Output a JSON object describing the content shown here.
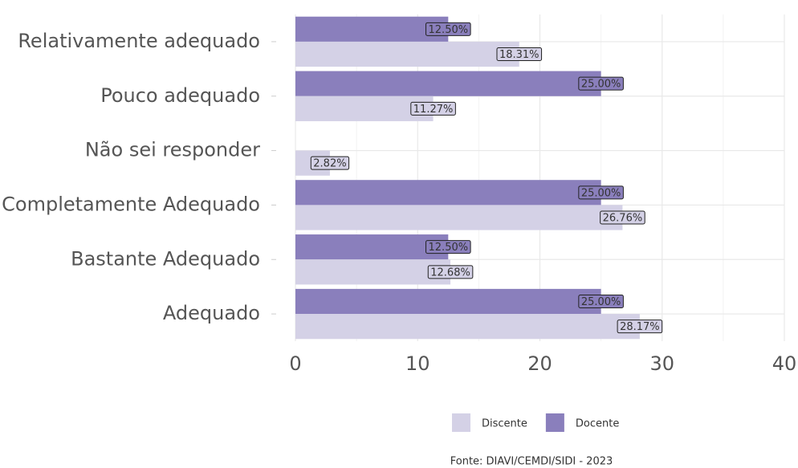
{
  "chart_data": {
    "type": "bar",
    "orientation": "horizontal",
    "categories": [
      "Relativamente adequado",
      "Pouco adequado",
      "Não sei responder",
      "Completamente Adequado",
      "Bastante Adequado",
      "Adequado"
    ],
    "series": [
      {
        "name": "Discente",
        "color": "#d4d1e6",
        "values": [
          18.31,
          11.27,
          2.82,
          26.76,
          12.68,
          28.17
        ],
        "value_labels": [
          "18.31%",
          "11.27%",
          "2.82%",
          "26.76%",
          "12.68%",
          "28.17%"
        ]
      },
      {
        "name": "Docente",
        "color": "#8a7fbc",
        "values": [
          12.5,
          25,
          null,
          25,
          12.5,
          25
        ],
        "value_labels": [
          "12.50%",
          "25.00%",
          null,
          "25.00%",
          "12.50%",
          "25.00%"
        ]
      }
    ],
    "xlim": [
      0,
      40
    ],
    "xticks": [
      0,
      10,
      20,
      30,
      40
    ],
    "xminorticks": [
      5,
      15,
      25,
      35
    ],
    "grid": true,
    "legend": "bottom",
    "caption": "Fonte: DIAVI/CEMDI/SIDI - 2023"
  }
}
